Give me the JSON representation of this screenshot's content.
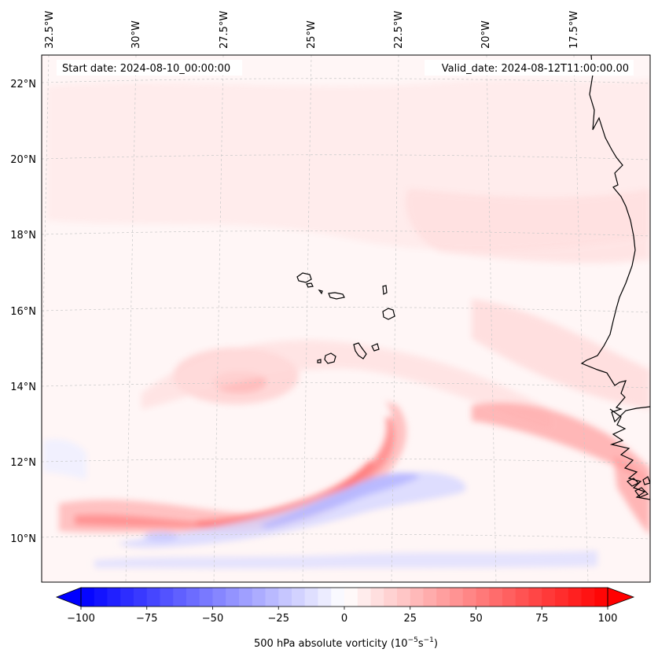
{
  "map": {
    "type": "filled-contour-map",
    "region": "Eastern tropical Atlantic / Cabo Verde / West African coast",
    "lon_range_deg": [
      -32.7,
      -15.4
    ],
    "lat_range_deg": [
      8.9,
      22.8
    ],
    "lon_ticks": [
      {
        "value": -32.5,
        "label": "32.5°W"
      },
      {
        "value": -30.0,
        "label": "30°W"
      },
      {
        "value": -27.5,
        "label": "27.5°W"
      },
      {
        "value": -25.0,
        "label": "25°W"
      },
      {
        "value": -22.5,
        "label": "22.5°W"
      },
      {
        "value": -20.0,
        "label": "20°W"
      },
      {
        "value": -17.5,
        "label": "17.5°W"
      }
    ],
    "lat_ticks": [
      {
        "value": 22,
        "label": "22°N"
      },
      {
        "value": 20,
        "label": "20°N"
      },
      {
        "value": 18,
        "label": "18°N"
      },
      {
        "value": 16,
        "label": "16°N"
      },
      {
        "value": 14,
        "label": "14°N"
      },
      {
        "value": 12,
        "label": "12°N"
      },
      {
        "value": 10,
        "label": "10°N"
      }
    ],
    "start_date": "Start date: 2024-08-10_00:00:00",
    "valid_date": "Valid_date: 2024-08-12T11:00:00.00",
    "features": [
      {
        "name": "positive vorticity band",
        "sign": "positive",
        "approx_value": 45
      },
      {
        "name": "negative vorticity band",
        "sign": "negative",
        "approx_value": -35
      },
      {
        "name": "vortex maximum near 14N 27W",
        "sign": "positive",
        "approx_value": 30
      }
    ],
    "colors": {
      "negative_max": "#0000ff",
      "neutral": "#ffffff",
      "positive_max": "#ff0000",
      "coastline": "#000000",
      "gridline": "#c8c8c8"
    }
  },
  "colorbar": {
    "min": -100,
    "max": 100,
    "levels": 40,
    "ticks": [
      {
        "value": -100,
        "label": "−100"
      },
      {
        "value": -75,
        "label": "−75"
      },
      {
        "value": -50,
        "label": "−50"
      },
      {
        "value": -25,
        "label": "−25"
      },
      {
        "value": 0,
        "label": "0"
      },
      {
        "value": 25,
        "label": "25"
      },
      {
        "value": 50,
        "label": "50"
      },
      {
        "value": 75,
        "label": "75"
      },
      {
        "value": 100,
        "label": "100"
      }
    ],
    "label_main": "500 hPa absolute vorticity (10",
    "label_exp1": "−5",
    "label_mid": "s",
    "label_exp2": "−1",
    "label_end": ")"
  }
}
